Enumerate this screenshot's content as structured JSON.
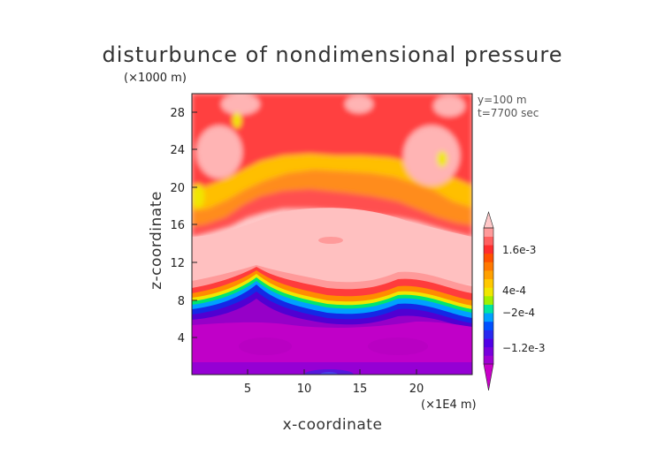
{
  "chart_data": {
    "type": "heatmap",
    "title": "disturbunce of nondimensional pressure",
    "xlabel": "x-coordinate",
    "ylabel": "z-coordinate",
    "x_unit": "(×1E4 m)",
    "y_unit": "(×1000 m)",
    "xlim": [
      0,
      25
    ],
    "ylim": [
      0,
      30
    ],
    "x_ticks": [
      "5",
      "10",
      "15",
      "20"
    ],
    "y_ticks": [
      "4",
      "8",
      "12",
      "16",
      "20",
      "24",
      "28"
    ],
    "annotations": [
      "y=100 m",
      "t=7700 sec"
    ],
    "colorbar": {
      "tick_labels": [
        "1.6e-3",
        "4e-4",
        "−2e-4",
        "−1.2e-3"
      ],
      "levels": [
        -0.0018,
        -0.0016,
        -0.0014,
        -0.0012,
        -0.001,
        -0.0008,
        -0.0006,
        -0.0004,
        -0.0002,
        0,
        0.0002,
        0.0004,
        0.0006,
        0.0008,
        0.001,
        0.0012,
        0.0014,
        0.0016,
        0.0018
      ],
      "colors": [
        "#c800c8",
        "#a000d2",
        "#7800dc",
        "#5000e6",
        "#2828f0",
        "#0050ff",
        "#00a0ff",
        "#00e6a0",
        "#a0f000",
        "#f0e600",
        "#ffc800",
        "#ffa000",
        "#ff7800",
        "#ff5000",
        "#ff2d2d",
        "#ff6060",
        "#ff9a9a",
        "#ffc8c8"
      ]
    },
    "z_rows_approx": [
      {
        "z": 1,
        "value": -0.0015
      },
      {
        "z": 4,
        "value": -0.0014
      },
      {
        "z": 6.5,
        "value": -0.0009
      },
      {
        "z": 8,
        "value": 0.0003
      },
      {
        "z": 9.5,
        "value": 0.0012
      },
      {
        "z": 12,
        "value": 0.0018
      },
      {
        "z": 16,
        "value": 0.0016
      },
      {
        "z": 20,
        "value": 0.0009
      },
      {
        "z": 24,
        "value": 0.0013
      },
      {
        "z": 28,
        "value": 0.0015
      }
    ]
  }
}
